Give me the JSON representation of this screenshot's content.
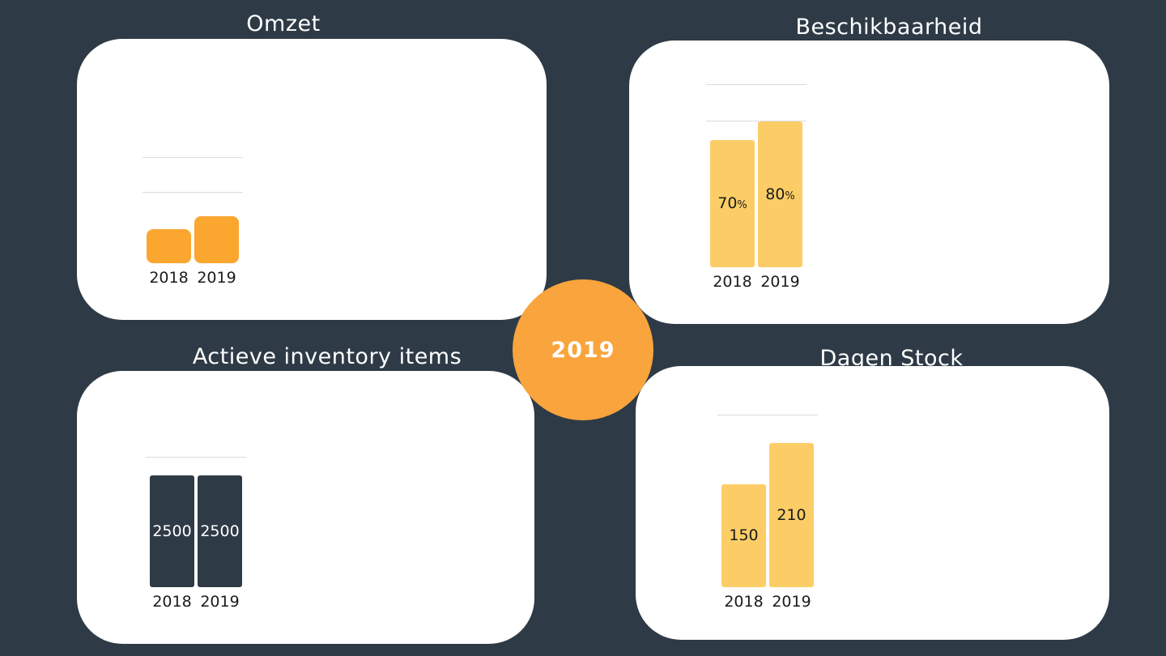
{
  "page": {
    "background_color": "#2E3B46",
    "center_badge": {
      "label": "2019",
      "color": "#F9A43C",
      "text_color": "#FFFFFF"
    }
  },
  "chart_data": [
    {
      "type": "bar",
      "title": "Omzet",
      "categories": [
        "2018",
        "2019"
      ],
      "values": [
        42,
        58
      ],
      "value_labels_shown": false,
      "label_suffix": "",
      "ylim": [
        0,
        130
      ],
      "gridline_levels": [
        130,
        87
      ],
      "bar_color": "#FBA62E",
      "label_color": "#1A1A1A",
      "legend": "none",
      "grid": "partial-horizontal"
    },
    {
      "type": "bar",
      "title": "Beschikbaarheid",
      "categories": [
        "2018",
        "2019"
      ],
      "values": [
        70,
        80
      ],
      "value_labels_shown": true,
      "label_suffix": "%",
      "ylim": [
        0,
        100
      ],
      "gridline_levels": [
        100,
        80
      ],
      "bar_color": "#FCCD66",
      "label_color": "#1A1A1A",
      "legend": "none",
      "grid": "partial-horizontal"
    },
    {
      "type": "bar",
      "title": "Actieve inventory items",
      "categories": [
        "2018",
        "2019"
      ],
      "values": [
        2500,
        2500
      ],
      "value_labels_shown": true,
      "label_suffix": "",
      "ylim": [
        0,
        2900
      ],
      "gridline_levels": [
        2900
      ],
      "bar_color": "#2E3B46",
      "label_color": "#FFFFFF",
      "legend": "none",
      "grid": "partial-horizontal"
    },
    {
      "type": "bar",
      "title": "Dagen Stock",
      "categories": [
        "2018",
        "2019"
      ],
      "values": [
        150,
        210
      ],
      "value_labels_shown": true,
      "label_suffix": "",
      "ylim": [
        0,
        250
      ],
      "gridline_levels": [
        250
      ],
      "bar_color": "#FCCD66",
      "label_color": "#1A1A1A",
      "legend": "none",
      "grid": "partial-horizontal"
    }
  ]
}
